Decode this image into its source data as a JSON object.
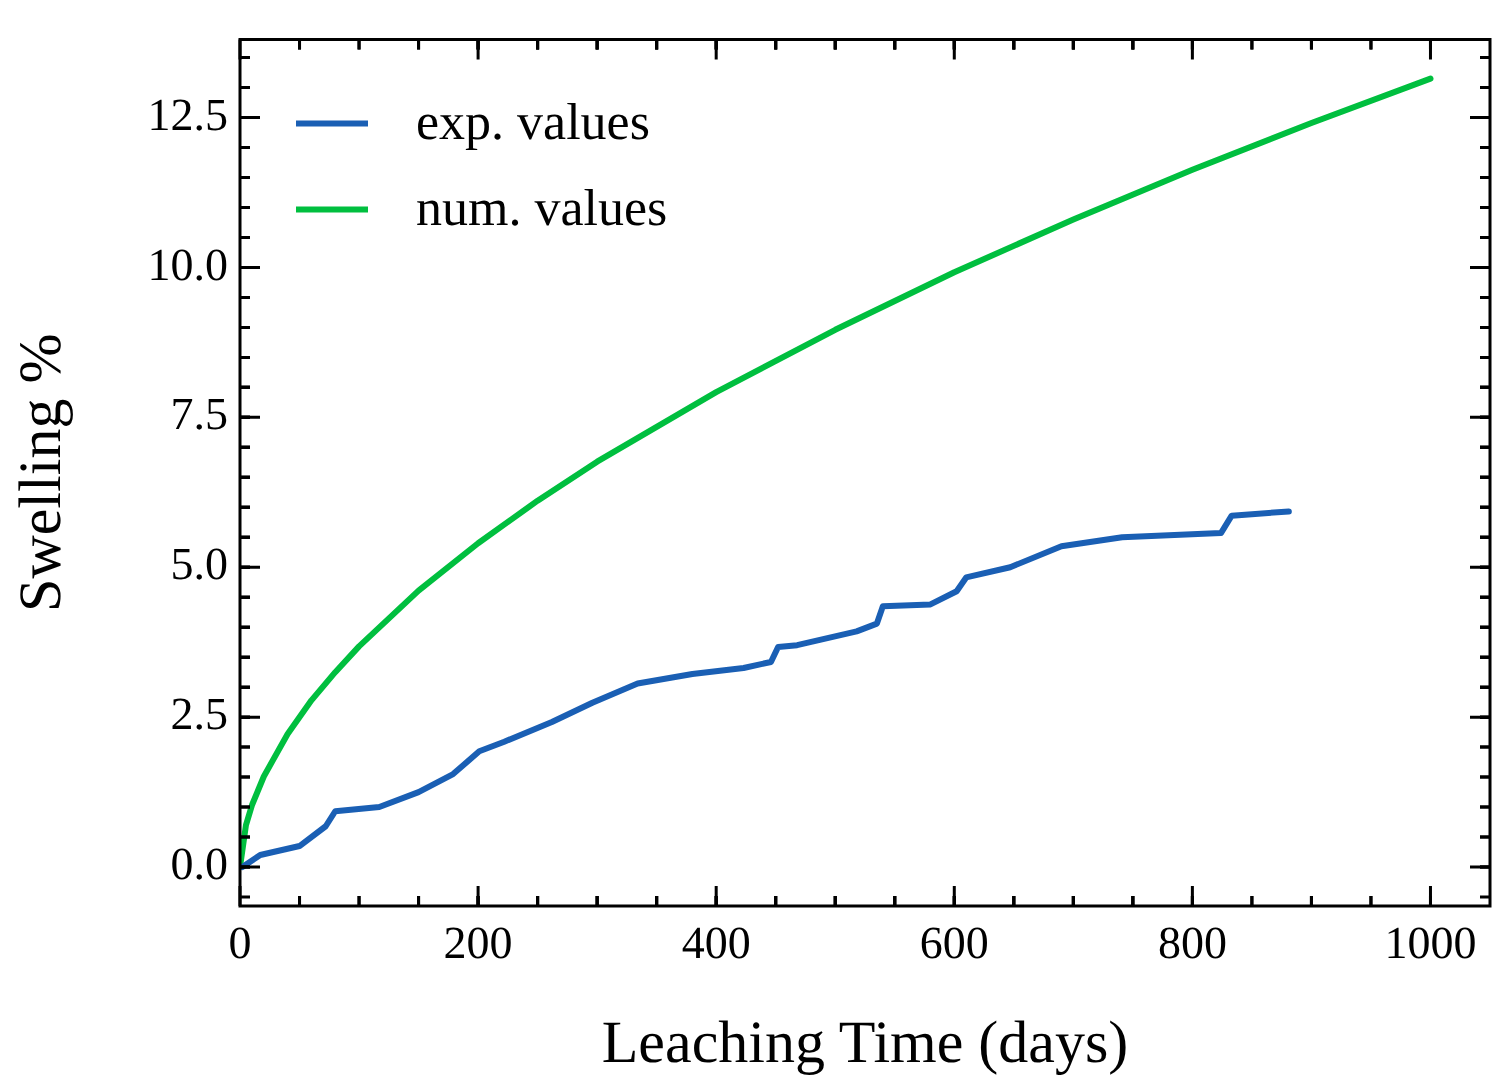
{
  "chart_data": {
    "type": "line",
    "xlabel": "Leaching Time (days)",
    "ylabel": "Swelling %",
    "xlim": [
      0,
      1050
    ],
    "xticks": [
      0,
      200,
      400,
      600,
      800,
      1000
    ],
    "ylim": [
      -0.65,
      13.8
    ],
    "yticks": [
      {
        "value": 0,
        "label": "0.0"
      },
      {
        "value": 2.5,
        "label": "2.5"
      },
      {
        "value": 5,
        "label": "5.0"
      },
      {
        "value": 7.5,
        "label": "7.5"
      },
      {
        "value": 10,
        "label": "10.0"
      },
      {
        "value": 12.5,
        "label": "12.5"
      }
    ],
    "legend": "top left",
    "grid": false,
    "marker": "none",
    "line_style": "solid",
    "series": [
      {
        "name": "exp. values",
        "color": "#1a5fb4",
        "x": [
          2,
          17,
          50,
          72,
          80,
          117,
          150,
          179,
          201,
          222,
          262,
          296,
          334,
          380,
          423,
          446,
          452,
          468,
          518,
          535,
          540,
          580,
          602,
          610,
          647,
          690,
          741,
          824,
          833,
          881
        ],
        "values": [
          0.0,
          0.2,
          0.35,
          0.68,
          0.93,
          1.0,
          1.25,
          1.55,
          1.93,
          2.09,
          2.42,
          2.74,
          3.06,
          3.22,
          3.32,
          3.42,
          3.67,
          3.7,
          3.93,
          4.06,
          4.35,
          4.38,
          4.6,
          4.83,
          5.0,
          5.35,
          5.5,
          5.57,
          5.86,
          5.93
        ]
      },
      {
        "name": "num. values",
        "color": "#00bf3f",
        "x": [
          0,
          5,
          10,
          20,
          40,
          60,
          80,
          100,
          150,
          200,
          250,
          300,
          400,
          500,
          600,
          700,
          800,
          900,
          1000
        ],
        "values": [
          0,
          0.7,
          1.03,
          1.51,
          2.22,
          2.78,
          3.25,
          3.68,
          4.61,
          5.4,
          6.11,
          6.76,
          7.92,
          8.96,
          9.92,
          10.8,
          11.63,
          12.41,
          13.15
        ]
      }
    ]
  }
}
